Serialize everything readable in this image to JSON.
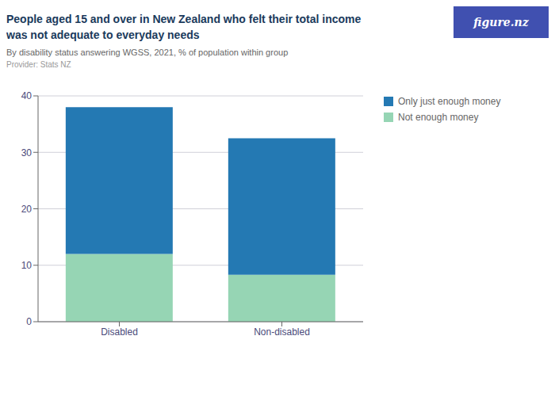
{
  "chart_data": {
    "type": "bar",
    "title": "People aged 15 and over in New Zealand who felt their total income\nwas not adequate to everyday needs",
    "subtitle": "By disability status answering WGSS, 2021, % of population within group",
    "annotations": [
      "Provider: Stats NZ",
      "figure.nz"
    ],
    "categories": [
      "Disabled",
      "Non-disabled"
    ],
    "series": [
      {
        "name": "Not enough money",
        "color": "#96d5b4",
        "values": [
          12.0,
          8.3
        ]
      },
      {
        "name": "Only just enough money",
        "color": "#2479b3",
        "values": [
          26.0,
          24.2
        ]
      }
    ],
    "stacked": true,
    "ylim": [
      0,
      40
    ],
    "yticks": [
      0,
      10,
      20,
      30,
      40
    ],
    "grid": true,
    "legend": "right"
  }
}
